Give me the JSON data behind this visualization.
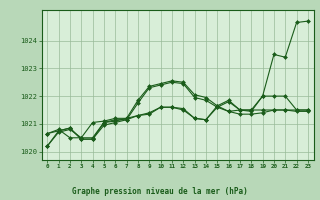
{
  "background_color": "#b8d8b8",
  "plot_bg_color": "#d8eed8",
  "grid_color": "#99bb99",
  "line_color": "#1a5c1a",
  "marker_color": "#1a5c1a",
  "xlabel": "Graphe pression niveau de la mer (hPa)",
  "xlim": [
    -0.5,
    23.5
  ],
  "ylim": [
    1019.7,
    1025.1
  ],
  "yticks": [
    1020,
    1021,
    1022,
    1023,
    1024
  ],
  "xticks": [
    0,
    1,
    2,
    3,
    4,
    5,
    6,
    7,
    8,
    9,
    10,
    11,
    12,
    13,
    14,
    15,
    16,
    17,
    18,
    19,
    20,
    21,
    22,
    23
  ],
  "series1_x": [
    0,
    1,
    2,
    3,
    4,
    5,
    6,
    7,
    8,
    9,
    10,
    11,
    12,
    13,
    14,
    15,
    16,
    17,
    18,
    19,
    20,
    21,
    22,
    23
  ],
  "series1_y": [
    1020.2,
    1020.7,
    1020.8,
    1020.5,
    1020.5,
    1021.05,
    1021.1,
    1021.2,
    1021.85,
    1022.35,
    1022.45,
    1022.55,
    1022.5,
    1022.05,
    1021.95,
    1021.65,
    1021.85,
    1021.5,
    1021.45,
    1022.0,
    1023.5,
    1023.4,
    1024.65,
    1024.7
  ],
  "series2_x": [
    0,
    1,
    2,
    3,
    4,
    5,
    6,
    7,
    8,
    9,
    10,
    11,
    12,
    13,
    14,
    15,
    16,
    17,
    18,
    19,
    20,
    21,
    22,
    23
  ],
  "series2_y": [
    1020.2,
    1020.75,
    1020.85,
    1020.45,
    1020.45,
    1021.05,
    1021.15,
    1021.15,
    1021.3,
    1021.4,
    1021.6,
    1021.6,
    1021.55,
    1021.2,
    1021.15,
    1021.6,
    1021.45,
    1021.35,
    1021.35,
    1021.4,
    1021.5,
    1021.5,
    1021.45,
    1021.45
  ],
  "series3_x": [
    0,
    1,
    2,
    3,
    4,
    5,
    6,
    7,
    8,
    9,
    10,
    11,
    12,
    13,
    14,
    15,
    16,
    17,
    18,
    19,
    20,
    21,
    22,
    23
  ],
  "series3_y": [
    1020.65,
    1020.8,
    1020.5,
    1020.5,
    1021.05,
    1021.1,
    1021.2,
    1021.2,
    1021.3,
    1021.35,
    1021.6,
    1021.6,
    1021.5,
    1021.2,
    1021.15,
    1021.65,
    1021.45,
    1021.5,
    1021.5,
    1021.5,
    1021.5,
    1021.5,
    1021.5,
    1021.5
  ],
  "series4_x": [
    0,
    1,
    2,
    3,
    4,
    5,
    6,
    7,
    8,
    9,
    10,
    11,
    12,
    13,
    14,
    15,
    16,
    17,
    18,
    19,
    20,
    21,
    22,
    23
  ],
  "series4_y": [
    1020.65,
    1020.75,
    1020.85,
    1020.45,
    1020.45,
    1020.95,
    1021.05,
    1021.15,
    1021.75,
    1022.3,
    1022.4,
    1022.5,
    1022.45,
    1021.95,
    1021.85,
    1021.6,
    1021.8,
    1021.5,
    1021.5,
    1022.0,
    1022.0,
    1022.0,
    1021.5,
    1021.5
  ]
}
